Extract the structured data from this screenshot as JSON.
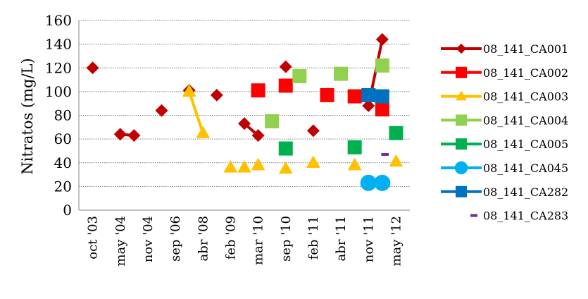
{
  "chart_data": {
    "type": "line",
    "title": "",
    "xlabel": "",
    "ylabel": "Nitratos (mg/L)",
    "ylim": [
      0,
      160
    ],
    "yticks": [
      "0",
      "20",
      "40",
      "60",
      "80",
      "100",
      "120",
      "140",
      "160"
    ],
    "categories": [
      "oct '03",
      "may '04",
      "nov '04",
      "sep '06",
      "abr '08",
      "feb '09",
      "mar '10",
      "sep '10",
      "feb '11",
      "abr '11",
      "nov '11",
      "may '12"
    ],
    "grid": "horizontal",
    "legend_position": "right",
    "series": [
      {
        "name": "08_141_CA001",
        "color": "#c00000",
        "marker": "diamond",
        "segments": [
          [
            [
              0,
              120
            ]
          ],
          [
            [
              1,
              64
            ],
            [
              1.5,
              63
            ]
          ],
          [
            [
              2.5,
              84
            ]
          ],
          [
            [
              3.5,
              101
            ]
          ],
          [
            [
              4.5,
              97
            ]
          ],
          [
            [
              5.5,
              73
            ],
            [
              6,
              63
            ]
          ],
          [
            [
              7,
              121
            ]
          ],
          [
            [
              8,
              67
            ]
          ],
          [
            [
              10,
              88
            ],
            [
              10.5,
              144
            ]
          ]
        ]
      },
      {
        "name": "08_141_CA002",
        "color": "#ff0000",
        "marker": "square",
        "segments": [
          [
            [
              6,
              101
            ]
          ],
          [
            [
              7,
              105
            ]
          ],
          [
            [
              8.5,
              97
            ]
          ],
          [
            [
              9.5,
              96
            ]
          ],
          [
            [
              10.5,
              85
            ]
          ]
        ]
      },
      {
        "name": "08_141_CA003",
        "color": "#ffc000",
        "marker": "triangle",
        "segments": [
          [
            [
              3.5,
              100
            ],
            [
              4,
              65
            ]
          ],
          [
            [
              5,
              36
            ]
          ],
          [
            [
              5.5,
              36
            ]
          ],
          [
            [
              6,
              38
            ]
          ],
          [
            [
              7,
              35
            ]
          ],
          [
            [
              8,
              40
            ]
          ],
          [
            [
              9.5,
              38
            ]
          ],
          [
            [
              11,
              41
            ]
          ]
        ]
      },
      {
        "name": "08_141_CA004",
        "color": "#92d050",
        "marker": "square",
        "segments": [
          [
            [
              6.5,
              75
            ]
          ],
          [
            [
              7.5,
              113
            ]
          ],
          [
            [
              9,
              115
            ]
          ],
          [
            [
              10.5,
              122
            ]
          ]
        ]
      },
      {
        "name": "08_141_CA005",
        "color": "#00b050",
        "marker": "square",
        "segments": [
          [
            [
              7,
              52
            ]
          ],
          [
            [
              9.5,
              53
            ]
          ],
          [
            [
              11,
              65
            ]
          ]
        ]
      },
      {
        "name": "08_141_CA045",
        "color": "#00b0f0",
        "marker": "circle",
        "segments": [
          [
            [
              10,
              23
            ],
            [
              10.5,
              23
            ]
          ]
        ]
      },
      {
        "name": "08_141_CA282",
        "color": "#0070c0",
        "marker": "square",
        "segments": [
          [
            [
              10,
              97
            ],
            [
              10.5,
              96
            ]
          ]
        ]
      },
      {
        "name": "08_141_CA283",
        "color": "#7030a0",
        "marker": "dash",
        "segments": [
          [
            [
              10.6,
              47
            ]
          ]
        ]
      }
    ]
  }
}
